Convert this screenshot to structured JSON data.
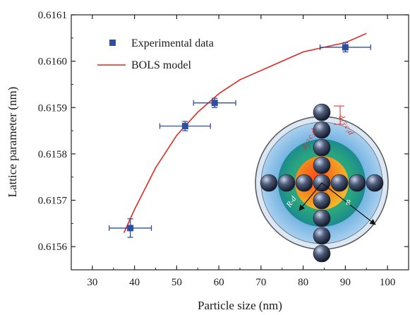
{
  "chart_data": {
    "type": "scatter",
    "xlabel": "Particle size (nm)",
    "ylabel": "Lattice parameter (nm)",
    "xlim": [
      25,
      105
    ],
    "ylim": [
      0.61555,
      0.6161
    ],
    "x_ticks": [
      "30",
      "40",
      "50",
      "60",
      "70",
      "80",
      "90",
      "100"
    ],
    "y_ticks": [
      "0.6156",
      "0.6157",
      "0.6158",
      "0.6159",
      "0.6160",
      "0.6161"
    ],
    "x_tick_values": [
      30,
      40,
      50,
      60,
      70,
      80,
      90,
      100
    ],
    "y_tick_values": [
      0.6156,
      0.6157,
      0.6158,
      0.6159,
      0.616,
      0.6161
    ],
    "legend_position": "top-left",
    "series": [
      {
        "name": "Experimental data",
        "kind": "scatter",
        "color": "#2f4f9e",
        "points": [
          {
            "x": 39,
            "y": 0.61564,
            "xerr": 5,
            "yerr": 2e-05
          },
          {
            "x": 52,
            "y": 0.61586,
            "xerr": 6,
            "yerr": 1e-05
          },
          {
            "x": 59,
            "y": 0.61591,
            "xerr": 5,
            "yerr": 1e-05
          },
          {
            "x": 90,
            "y": 0.61603,
            "xerr": 6,
            "yerr": 1e-05
          }
        ]
      },
      {
        "name": "BOLS model",
        "kind": "line",
        "color": "#e3261d",
        "x": [
          37.5,
          40,
          45,
          50,
          55,
          60,
          65,
          70,
          75,
          80,
          85,
          90,
          95
        ],
        "y": [
          0.61563,
          0.61568,
          0.61577,
          0.61584,
          0.61589,
          0.61593,
          0.61596,
          0.61598,
          0.616,
          0.61602,
          0.61603,
          0.61604,
          0.61606
        ]
      }
    ],
    "inset": {
      "description_icon": "core-shell-atom-model",
      "labels": [
        "d₂=c₂d",
        "d₁=c₁d",
        "R-d",
        "R"
      ]
    }
  }
}
